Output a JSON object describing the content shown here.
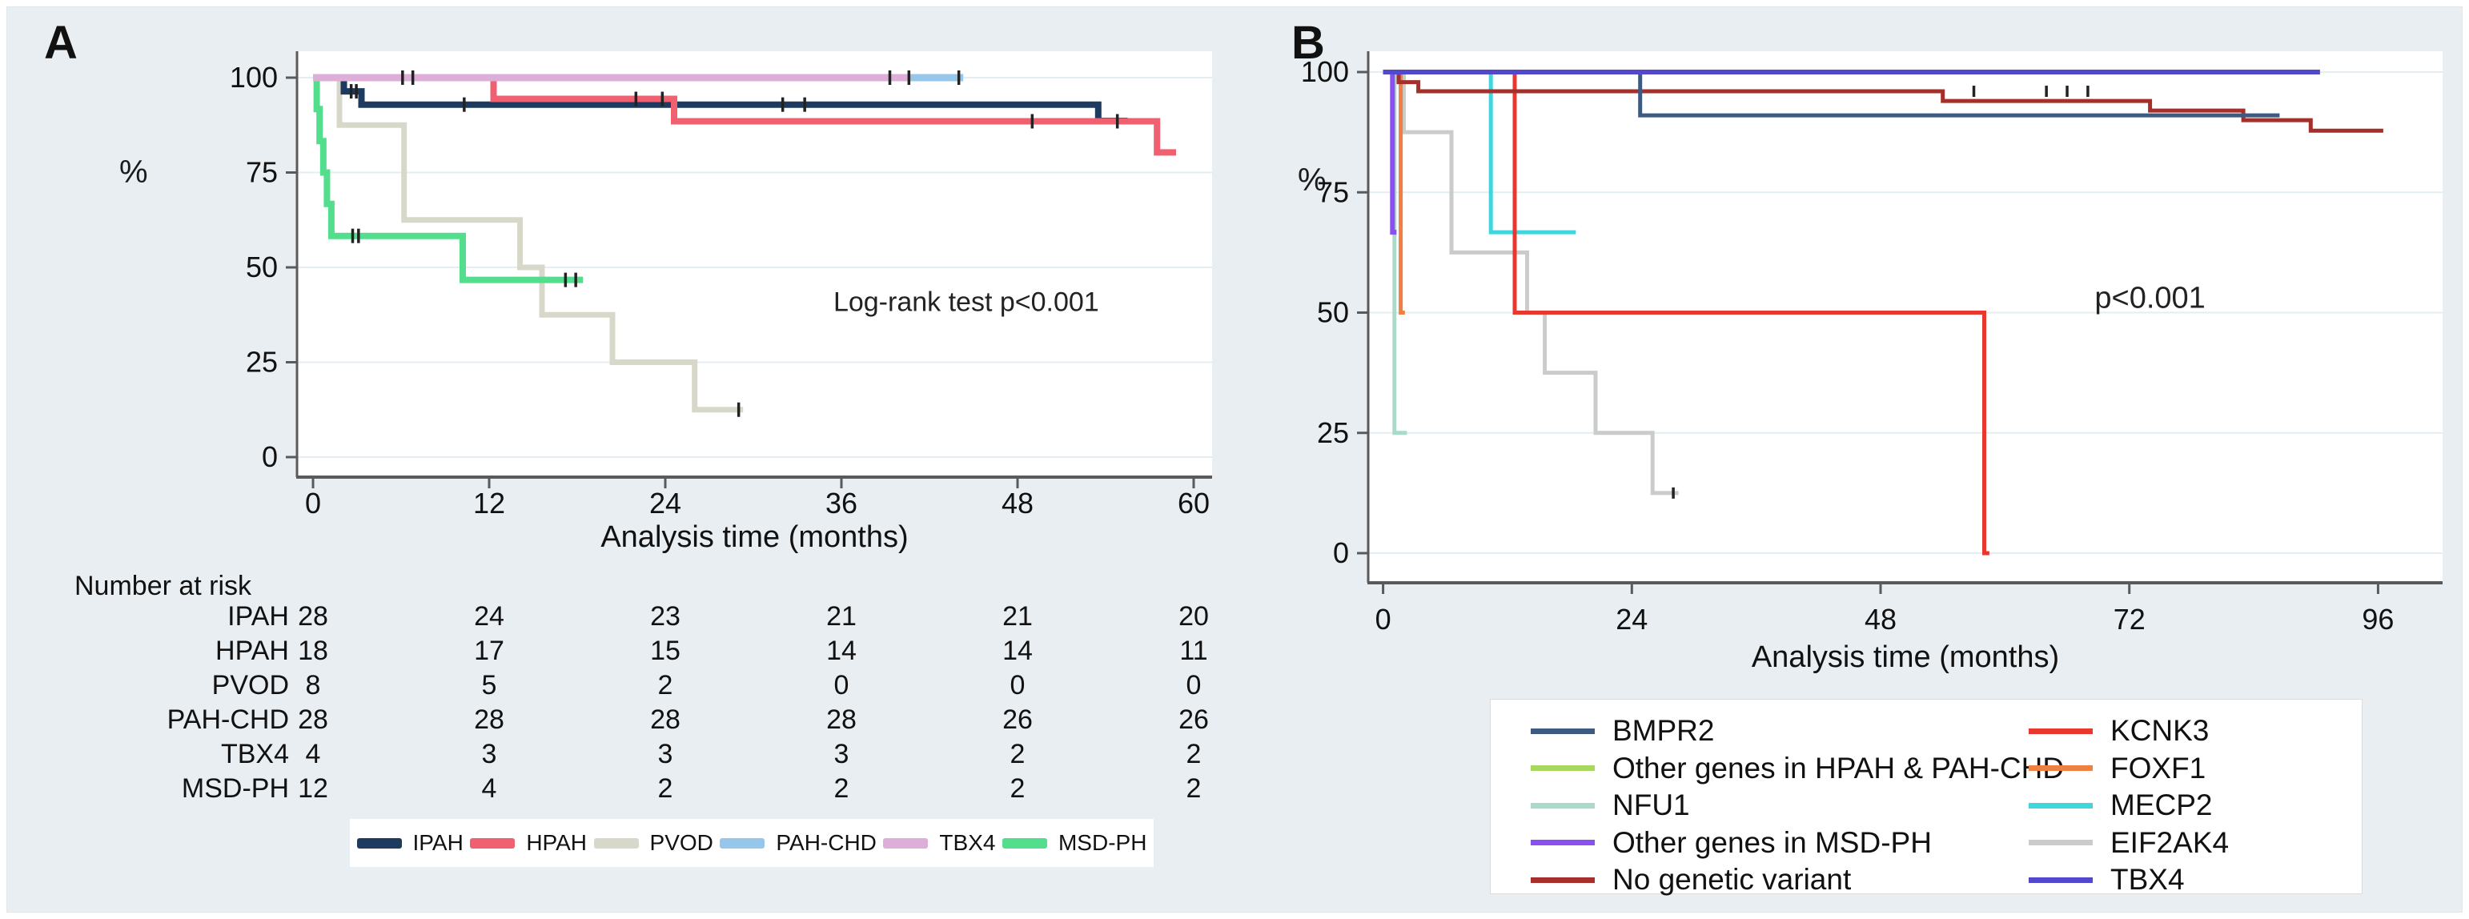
{
  "canvas": {
    "background": "#e8eef2",
    "panel_bg": "#ffffff",
    "grid_color": "#e3edf2",
    "axis_color": "#5a5a5a",
    "censor_color": "#222222"
  },
  "panel_a": {
    "letter": "A",
    "percent_label": "%"
  },
  "panel_b": {
    "letter": "B",
    "percent_label": "%"
  },
  "risk_table": {
    "title": "Number at risk",
    "time_points": [
      0,
      12,
      24,
      36,
      48,
      60
    ],
    "rows": [
      {
        "label": "IPAH",
        "values": [
          "28",
          "24",
          "23",
          "21",
          "21",
          "20"
        ]
      },
      {
        "label": "HPAH",
        "values": [
          "18",
          "17",
          "15",
          "14",
          "14",
          "11"
        ]
      },
      {
        "label": "PVOD",
        "values": [
          "8",
          "5",
          "2",
          "0",
          "0",
          "0"
        ]
      },
      {
        "label": "PAH-CHD",
        "values": [
          "28",
          "28",
          "28",
          "28",
          "26",
          "26"
        ]
      },
      {
        "label": "TBX4",
        "values": [
          "4",
          "3",
          "3",
          "3",
          "2",
          "2"
        ]
      },
      {
        "label": "MSD-PH",
        "values": [
          "12",
          "4",
          "2",
          "2",
          "2",
          "2"
        ]
      }
    ]
  },
  "legend_a": {
    "items": [
      {
        "label": "IPAH",
        "color": "#1e3a5f"
      },
      {
        "label": "HPAH",
        "color": "#ef6070"
      },
      {
        "label": "PVOD",
        "color": "#d8d8ca"
      },
      {
        "label": "PAH-CHD",
        "color": "#96c6ea"
      },
      {
        "label": "TBX4",
        "color": "#dcaed8"
      },
      {
        "label": "MSD-PH",
        "color": "#52de8c"
      }
    ]
  },
  "legend_b": {
    "left": [
      {
        "label": "BMPR2",
        "color": "#3d5a80"
      },
      {
        "label": "Other genes in HPAH & PAH-CHD",
        "color": "#a8d65e"
      },
      {
        "label": "NFU1",
        "color": "#a9dbc8"
      },
      {
        "label": "Other genes in MSD-PH",
        "color": "#8a4ff0"
      },
      {
        "label": "No genetic variant",
        "color": "#a5302b"
      }
    ],
    "right": [
      {
        "label": "KCNK3",
        "color": "#e8382e"
      },
      {
        "label": "FOXF1",
        "color": "#ef8044"
      },
      {
        "label": "MECP2",
        "color": "#3fd6de"
      },
      {
        "label": "EIF2AK4",
        "color": "#c9ccc9"
      },
      {
        "label": "TBX4",
        "color": "#5348cb"
      }
    ]
  },
  "chart_data": [
    {
      "id": "panel_a",
      "type": "line",
      "subtype": "kaplan-meier-step",
      "title": "A",
      "xlabel": "Analysis time (months)",
      "ylabel": "%",
      "xlim": [
        0,
        60
      ],
      "ylim": [
        0,
        100
      ],
      "x_ticks": [
        0,
        12,
        24,
        36,
        48,
        60
      ],
      "y_ticks": [
        100,
        75,
        50,
        25,
        0
      ],
      "grid": "horizontal",
      "legend_position": "bottom",
      "annotation": {
        "text": "Log-rank test p<0.001",
        "x": 44.5,
        "y": 38.5
      },
      "series": [
        {
          "name": "PVOD",
          "color": "#d8d8ca",
          "width": 7,
          "points": [
            [
              0,
              100
            ],
            [
              1.8,
              87.5
            ],
            [
              6.2,
              62.5
            ],
            [
              14.1,
              50
            ],
            [
              15.6,
              37.5
            ],
            [
              20.4,
              25
            ],
            [
              26,
              12.5
            ],
            [
              29.3,
              12.5
            ]
          ],
          "censors": [
            [
              29,
              12.5
            ]
          ]
        },
        {
          "name": "MSD-PH",
          "color": "#52de8c",
          "width": 8,
          "points": [
            [
              0,
              100
            ],
            [
              0.25,
              91.7
            ],
            [
              0.45,
              83.3
            ],
            [
              0.7,
              75
            ],
            [
              0.95,
              66.7
            ],
            [
              1.25,
              58.3
            ],
            [
              10.2,
              46.7
            ],
            [
              18.4,
              46.7
            ]
          ],
          "censors": [
            [
              2.7,
              58.3
            ],
            [
              3.1,
              58.3
            ],
            [
              17.2,
              46.7
            ],
            [
              17.9,
              46.7
            ]
          ]
        },
        {
          "name": "IPAH",
          "color": "#1e3a5f",
          "width": 8,
          "points": [
            [
              0,
              100
            ],
            [
              2.1,
              96.4
            ],
            [
              3.3,
              92.9
            ],
            [
              53.5,
              88.6
            ],
            [
              55.5,
              88.6
            ]
          ],
          "censors": [
            [
              2.6,
              96.4
            ],
            [
              2.95,
              96.4
            ],
            [
              10.3,
              92.9
            ],
            [
              32,
              92.9
            ],
            [
              33.5,
              92.9
            ]
          ]
        },
        {
          "name": "HPAH",
          "color": "#ef6070",
          "width": 8,
          "points": [
            [
              0,
              100
            ],
            [
              12.3,
              94.4
            ],
            [
              24.6,
              88.5
            ],
            [
              57.5,
              80.3
            ],
            [
              58.8,
              80.3
            ]
          ],
          "censors": [
            [
              6.8,
              100
            ],
            [
              22,
              94.4
            ],
            [
              23.8,
              94.4
            ],
            [
              49,
              88.5
            ],
            [
              54.8,
              88.5
            ]
          ]
        },
        {
          "name": "PAH-CHD",
          "color": "#96c6ea",
          "width": 9,
          "points": [
            [
              0,
              100
            ],
            [
              44.3,
              100
            ]
          ],
          "censors": [
            [
              40.6,
              100
            ],
            [
              44,
              100
            ]
          ]
        },
        {
          "name": "TBX4",
          "color": "#dcaed8",
          "width": 9,
          "points": [
            [
              0,
              100
            ],
            [
              40.5,
              100
            ]
          ],
          "censors": [
            [
              6.1,
              100
            ],
            [
              39.3,
              100
            ]
          ]
        }
      ]
    },
    {
      "id": "panel_b",
      "type": "line",
      "subtype": "kaplan-meier-step",
      "title": "B",
      "xlabel": "Analysis time (months)",
      "ylabel": "%",
      "xlim": [
        0,
        96
      ],
      "ylim": [
        0,
        100
      ],
      "x_ticks": [
        0,
        24,
        48,
        72,
        96
      ],
      "y_ticks": [
        100,
        75,
        50,
        25,
        0
      ],
      "grid": "horizontal",
      "legend_position": "bottom",
      "annotation": {
        "text": "p<0.001",
        "x": 74,
        "y": 51
      },
      "series": [
        {
          "name": "EIF2AK4",
          "color": "#c9ccc9",
          "width": 5,
          "points": [
            [
              0,
              100
            ],
            [
              2,
              87.5
            ],
            [
              6.6,
              62.5
            ],
            [
              13.9,
              50
            ],
            [
              15.6,
              37.5
            ],
            [
              20.5,
              25
            ],
            [
              26,
              12.5
            ],
            [
              28.5,
              12.5
            ]
          ],
          "censors": [
            [
              28,
              12.5
            ]
          ]
        },
        {
          "name": "Other genes in HPAH & PAH-CHD",
          "color": "#a8d65e",
          "width": 5,
          "points": [
            [
              0,
              100
            ],
            [
              8.5,
              100
            ]
          ],
          "censors": []
        },
        {
          "name": "NFU1",
          "color": "#a9dbc8",
          "width": 5,
          "points": [
            [
              0,
              100
            ],
            [
              1.1,
              25
            ],
            [
              2.3,
              25
            ]
          ],
          "censors": []
        },
        {
          "name": "FOXF1",
          "color": "#ef8044",
          "width": 5,
          "points": [
            [
              0,
              100
            ],
            [
              1.7,
              50
            ],
            [
              2.1,
              50
            ]
          ],
          "censors": []
        },
        {
          "name": "MECP2",
          "color": "#3fd6de",
          "width": 5,
          "points": [
            [
              0,
              100
            ],
            [
              10.4,
              66.7
            ],
            [
              18.6,
              66.7
            ]
          ],
          "censors": []
        },
        {
          "name": "Other genes in MSD-PH",
          "color": "#8a4ff0",
          "width": 6,
          "points": [
            [
              0,
              100
            ],
            [
              0.9,
              66.7
            ],
            [
              1.3,
              66.7
            ]
          ],
          "censors": []
        },
        {
          "name": "KCNK3",
          "color": "#e8382e",
          "width": 5,
          "points": [
            [
              0,
              100
            ],
            [
              12.7,
              50
            ],
            [
              58,
              0
            ],
            [
              58.5,
              0
            ]
          ],
          "censors": []
        },
        {
          "name": "No genetic variant",
          "color": "#a5302b",
          "width": 5,
          "points": [
            [
              0,
              100
            ],
            [
              1.5,
              97.9
            ],
            [
              3.4,
              96
            ],
            [
              54,
              94
            ],
            [
              74,
              92
            ],
            [
              83,
              90
            ],
            [
              89.5,
              87.8
            ],
            [
              96.5,
              87.8
            ]
          ],
          "censors": [
            [
              57,
              96
            ],
            [
              64,
              96
            ],
            [
              66,
              96
            ],
            [
              68,
              96
            ]
          ]
        },
        {
          "name": "BMPR2",
          "color": "#3d5a80",
          "width": 5,
          "points": [
            [
              0,
              100
            ],
            [
              24.8,
              91
            ],
            [
              86.5,
              91
            ]
          ],
          "censors": []
        },
        {
          "name": "TBX4",
          "color": "#5348cb",
          "width": 6,
          "points": [
            [
              0,
              100
            ],
            [
              90.4,
              100
            ]
          ],
          "censors": []
        }
      ]
    }
  ]
}
